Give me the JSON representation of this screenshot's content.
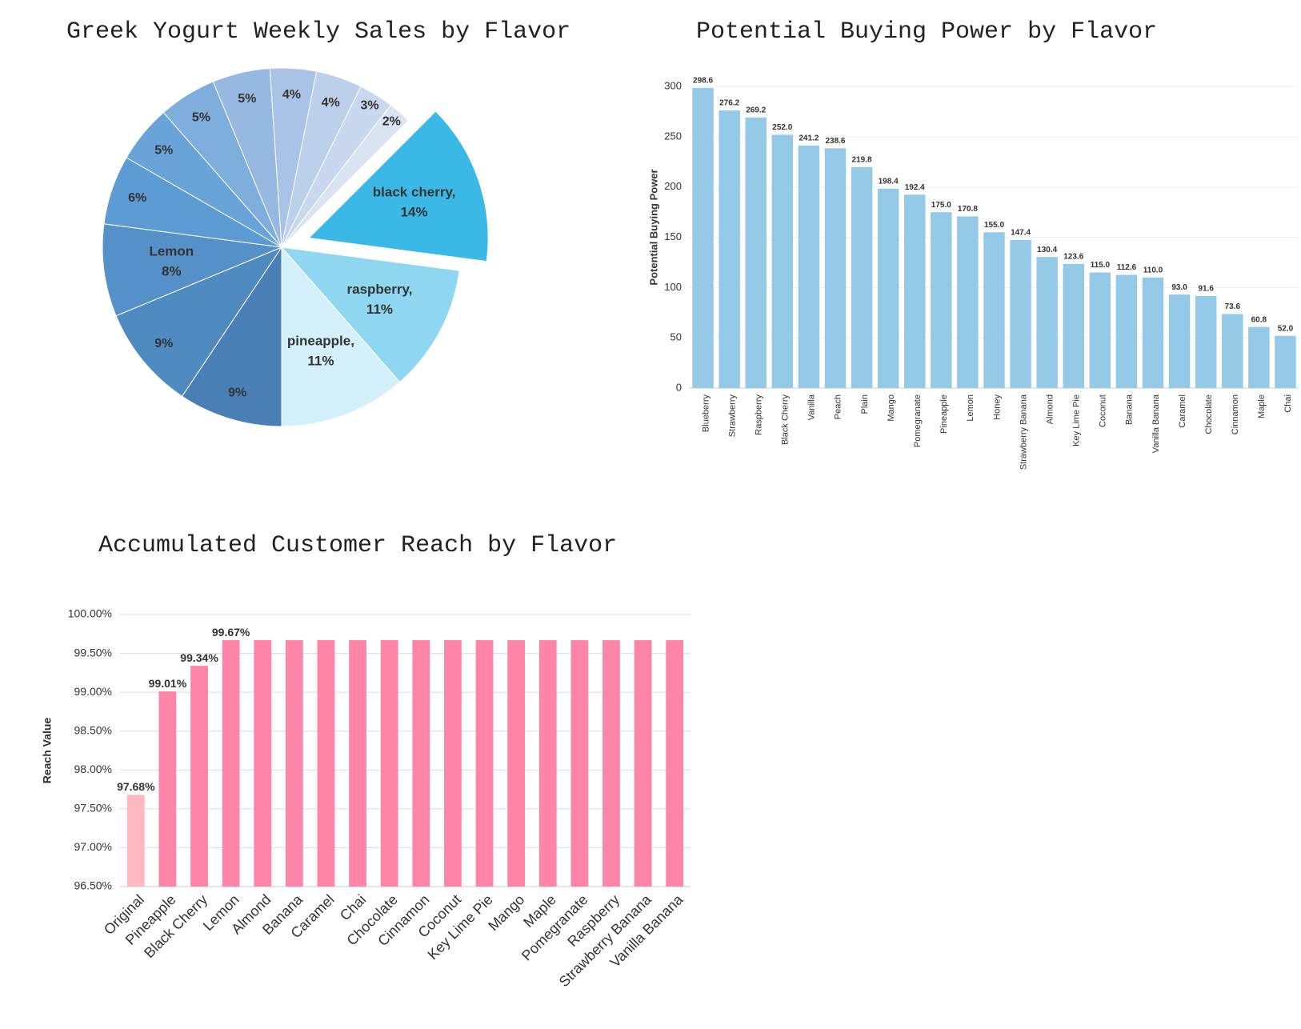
{
  "chart_data": [
    {
      "type": "pie",
      "title": "Greek Yogurt Weekly Sales by Flavor",
      "categories": [
        "black cherry,",
        "raspberry,",
        "pineapple,",
        null,
        null,
        "Lemon",
        null,
        null,
        null,
        null,
        null,
        null,
        null,
        null
      ],
      "values": [
        14,
        11,
        11,
        9,
        9,
        8,
        6,
        5,
        5,
        5,
        4,
        4,
        3,
        2
      ],
      "value_labels": [
        "14%",
        "11%",
        "11%",
        "9%",
        "9%",
        "8%",
        "6%",
        "5%",
        "5%",
        "5%",
        "4%",
        "4%",
        "3%",
        "2%"
      ],
      "colors": [
        "#3bb9e6",
        "#8fd6f0",
        "#d4f1fb",
        "#4a7fb5",
        "#4f8bc0",
        "#5590c8",
        "#5c9bd4",
        "#6aa3d8",
        "#7eaedc",
        "#97b8e0",
        "#a9c3e6",
        "#bccfeb",
        "#c9d8ee",
        "#d9e3f2"
      ]
    },
    {
      "type": "bar",
      "title": "Potential Buying Power by Flavor",
      "y_label": "Potential Buying Power",
      "categories": [
        "Blueberry",
        "Strawberry",
        "Raspberry",
        "Black Cherry",
        "Vanilla",
        "Peach",
        "Plain",
        "Mango",
        "Pomegranate",
        "Pineapple",
        "Lemon",
        "Honey",
        "Strawberry Banana",
        "Almond",
        "Key Lime Pie",
        "Coconut",
        "Banana",
        "Vanilla Banana",
        "Caramel",
        "Chocolate",
        "Cinnamon",
        "Maple",
        "Chai"
      ],
      "values": [
        298.6,
        276.2,
        269.2,
        252.0,
        241.2,
        238.6,
        219.8,
        198.4,
        192.4,
        175.0,
        170.8,
        155.0,
        147.4,
        130.4,
        123.6,
        115.0,
        112.6,
        110.0,
        93.0,
        91.6,
        73.6,
        60.8,
        52.0
      ],
      "value_labels": [
        "298.6",
        "276.2",
        "269.2",
        "252.0",
        "241.2",
        "238.6",
        "219.8",
        "198.4",
        "192.4",
        "175.0",
        "170.8",
        "155.0",
        "147.4",
        "130.4",
        "123.6",
        "115.0",
        "112.6",
        "110.0",
        "93.0",
        "91.6",
        "73.6",
        "60.8",
        "52.0"
      ],
      "color": "#94c9e8",
      "ylim": [
        0,
        320
      ],
      "yticks": [
        0,
        50,
        100,
        150,
        200,
        250,
        300
      ],
      "grid": true
    },
    {
      "type": "bar",
      "title": "Accumulated Customer Reach by Flavor",
      "y_label": "Reach Value",
      "categories": [
        "Original",
        "Pineapple",
        "Black Cherry",
        "Lemon",
        "Almond",
        "Banana",
        "Caramel",
        "Chai",
        "Chocolate",
        "Cinnamon",
        "Coconut",
        "Key Lime Pie",
        "Mango",
        "Maple",
        "Pomegranate",
        "Raspberry",
        "Strawberry Banana",
        "Vanilla Banana"
      ],
      "values": [
        97.68,
        99.01,
        99.34,
        99.67,
        99.67,
        99.67,
        99.67,
        99.67,
        99.67,
        99.67,
        99.67,
        99.67,
        99.67,
        99.67,
        99.67,
        99.67,
        99.67,
        99.67
      ],
      "value_labels": [
        "97.68%",
        "99.01%",
        "99.34%",
        "99.67%",
        null,
        null,
        null,
        null,
        null,
        null,
        null,
        null,
        null,
        null,
        null,
        null,
        null,
        null
      ],
      "colors": [
        "#ffb8bf",
        "#ff85a8",
        "#ff85a8",
        "#ff85a8",
        "#ff85a8",
        "#ff85a8",
        "#ff85a8",
        "#ff85a8",
        "#ff85a8",
        "#ff85a8",
        "#ff85a8",
        "#ff85a8",
        "#ff85a8",
        "#ff85a8",
        "#ff85a8",
        "#ff85a8",
        "#ff85a8",
        "#ff85a8"
      ],
      "ylim": [
        96.5,
        100
      ],
      "yticks": [
        {
          "value": 96.5,
          "label": "96.50%"
        },
        {
          "value": 97,
          "label": "97.00%"
        },
        {
          "value": 97.5,
          "label": "97.50%"
        },
        {
          "value": 98,
          "label": "98.00%"
        },
        {
          "value": 98.5,
          "label": "98.50%"
        },
        {
          "value": 99,
          "label": "99.00%"
        },
        {
          "value": 99.5,
          "label": "99.50%"
        },
        {
          "value": 100,
          "label": "100.00%"
        }
      ],
      "grid": true
    }
  ]
}
